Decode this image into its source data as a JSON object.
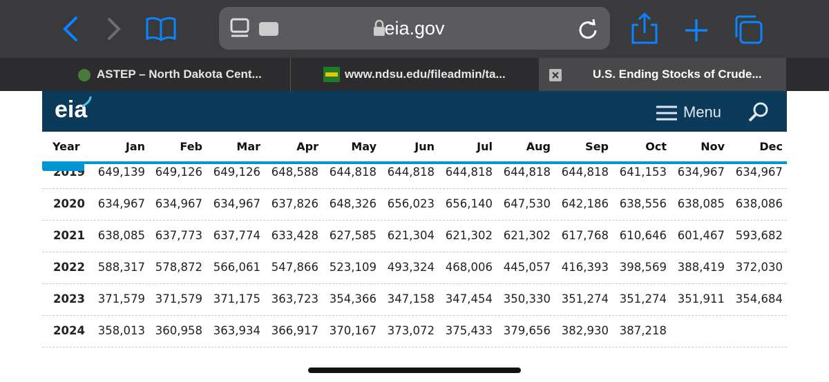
{
  "browser": {
    "address": "eia.gov",
    "tabs": [
      "ASTEP – North Dakota Cent...",
      "www.ndsu.edu/fileadmin/ta...",
      "U.S. Ending Stocks of Crude..."
    ]
  },
  "site": {
    "logo": "eia",
    "menu": "Menu"
  },
  "table": {
    "columns": [
      "Year",
      "Jan",
      "Feb",
      "Mar",
      "Apr",
      "May",
      "Jun",
      "Jul",
      "Aug",
      "Sep",
      "Oct",
      "Nov",
      "Dec"
    ],
    "rows": [
      [
        "2019",
        "649,139",
        "649,126",
        "649,126",
        "648,588",
        "644,818",
        "644,818",
        "644,818",
        "644,818",
        "644,818",
        "641,153",
        "634,967",
        "634,967"
      ],
      [
        "2020",
        "634,967",
        "634,967",
        "634,967",
        "637,826",
        "648,326",
        "656,023",
        "656,140",
        "647,530",
        "642,186",
        "638,556",
        "638,085",
        "638,086"
      ],
      [
        "2021",
        "638,085",
        "637,773",
        "637,774",
        "633,428",
        "627,585",
        "621,304",
        "621,302",
        "621,302",
        "617,768",
        "610,646",
        "601,467",
        "593,682"
      ],
      [
        "2022",
        "588,317",
        "578,872",
        "566,061",
        "547,866",
        "523,109",
        "493,324",
        "468,006",
        "445,057",
        "416,393",
        "398,569",
        "388,419",
        "372,030"
      ],
      [
        "2023",
        "371,579",
        "371,579",
        "371,175",
        "363,723",
        "354,366",
        "347,158",
        "347,454",
        "350,330",
        "351,274",
        "351,274",
        "351,911",
        "354,684"
      ],
      [
        "2024",
        "358,013",
        "360,958",
        "363,934",
        "366,917",
        "370,167",
        "373,072",
        "375,433",
        "379,656",
        "382,930",
        "387,218"
      ]
    ]
  }
}
